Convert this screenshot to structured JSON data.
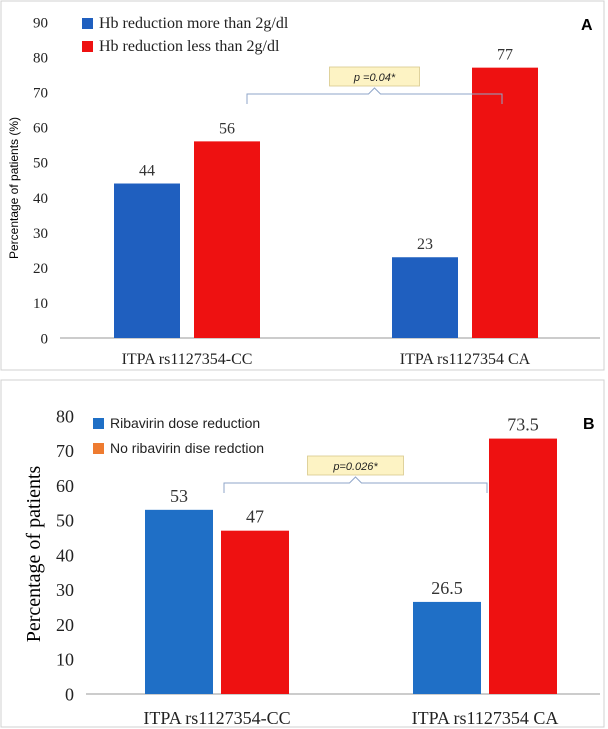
{
  "chart_data": [
    {
      "type": "bar",
      "panel_label": "A",
      "categories": [
        "ITPA rs1127354-CC",
        "ITPA rs1127354 CA"
      ],
      "series": [
        {
          "name": "Hb reduction  more than 2g/dl",
          "color": "#1f5fbf",
          "values": [
            44,
            23
          ]
        },
        {
          "name": "Hb reduction less than 2g/dl",
          "color": "#ee1111",
          "values": [
            56,
            77
          ]
        }
      ],
      "data_labels": [
        [
          "44",
          "23"
        ],
        [
          "56",
          "77"
        ]
      ],
      "ylabel": "Percentage of patients (%)",
      "ylim": [
        0,
        90
      ],
      "yticks": [
        0,
        10,
        20,
        30,
        40,
        50,
        60,
        70,
        80,
        90
      ],
      "legend": "top-left",
      "grid": false,
      "annotation": "p =0.04*"
    },
    {
      "type": "bar",
      "panel_label": "B",
      "categories": [
        "ITPA rs1127354-CC",
        "ITPA rs1127354 CA"
      ],
      "series": [
        {
          "name": "Ribavirin dose reduction",
          "color": "#1f6fc6",
          "values": [
            53,
            26.5
          ]
        },
        {
          "name": "No ribavirin dise redction",
          "color": "#ee7b30",
          "bar_color": "#ee1111",
          "values": [
            47,
            73.5
          ]
        }
      ],
      "data_labels": [
        [
          "53",
          "26.5"
        ],
        [
          "47",
          "73.5"
        ]
      ],
      "ylabel": "Percentage of patients",
      "ylim": [
        0,
        80
      ],
      "yticks": [
        0,
        10,
        20,
        30,
        40,
        50,
        60,
        70,
        80
      ],
      "legend": "top-left",
      "grid": false,
      "annotation": "p=0.026*"
    }
  ]
}
